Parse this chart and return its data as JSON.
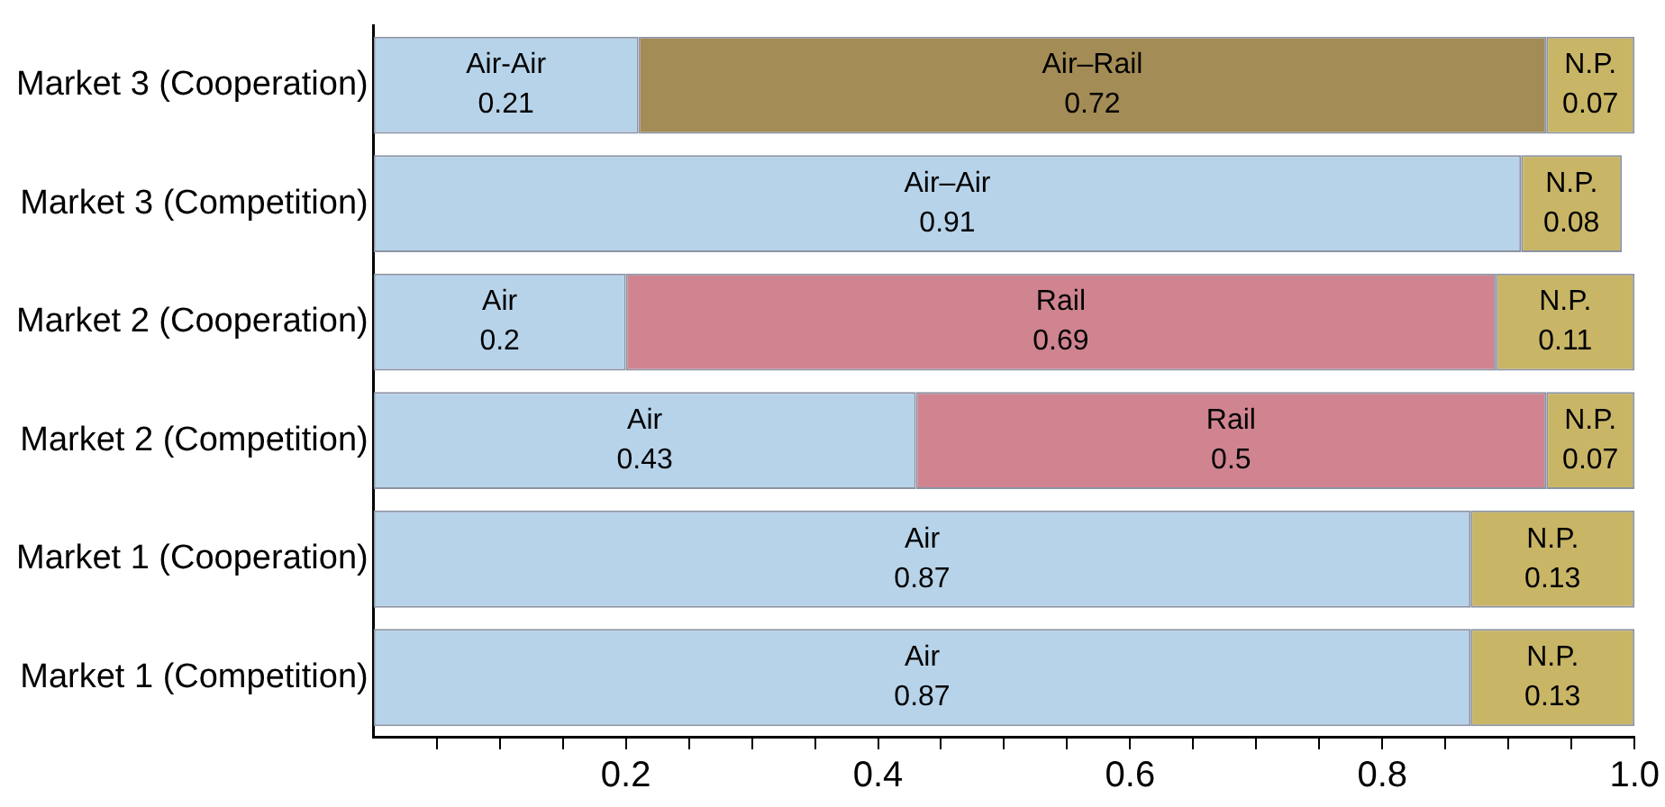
{
  "chart_data": {
    "type": "bar",
    "orientation": "horizontal",
    "stacked": true,
    "legend": false,
    "grid": false,
    "categories": [
      "Market 3 (Cooperation)",
      "Market 3 (Competition)",
      "Market 2 (Cooperation)",
      "Market 2 (Competition)",
      "Market 1 (Cooperation)",
      "Market 1 (Competition)"
    ],
    "xlim": [
      0,
      1
    ],
    "xticks": [
      {
        "value": 0.05,
        "label": null
      },
      {
        "value": 0.1,
        "label": null
      },
      {
        "value": 0.15,
        "label": null
      },
      0.2,
      {
        "value": 0.25,
        "label": null
      },
      {
        "value": 0.3,
        "label": null
      },
      {
        "value": 0.35,
        "label": null
      },
      0.4,
      {
        "value": 0.45,
        "label": null
      },
      {
        "value": 0.5,
        "label": null
      },
      {
        "value": 0.55,
        "label": null
      },
      0.6,
      {
        "value": 0.65,
        "label": null
      },
      {
        "value": 0.7,
        "label": null
      },
      {
        "value": 0.75,
        "label": null
      },
      0.8,
      {
        "value": 0.85,
        "label": null
      },
      {
        "value": 0.9,
        "label": null
      },
      {
        "value": 0.95,
        "label": null
      },
      {
        "value": 1,
        "label": "1.0"
      }
    ],
    "series": [
      {
        "color": "#b7d3e9",
        "values": [
          0.21,
          0.91,
          0.2,
          0.43,
          0.87,
          0.87
        ],
        "value_labels": [
          "Air-Air\n0.21",
          "Air–Air\n0.91",
          "Air\n0.2",
          "Air\n0.43",
          "Air\n0.87",
          "Air\n0.87"
        ]
      },
      {
        "color": "#a38c56",
        "values": [
          0.72,
          null,
          null,
          null,
          null,
          null
        ],
        "value_labels": [
          "Air–Rail\n0.72",
          null,
          null,
          null,
          null,
          null
        ]
      },
      {
        "color": "#cf8490",
        "values": [
          null,
          null,
          0.69,
          0.5,
          null,
          null
        ],
        "value_labels": [
          null,
          null,
          "Rail\n0.69",
          "Rail\n0.5",
          null,
          null
        ]
      },
      {
        "color": "#c8b566",
        "values": [
          0.07,
          0.08,
          0.11,
          0.07,
          0.13,
          0.13
        ],
        "value_labels": [
          "N.P.\n0.07",
          "N.P.\n0.08",
          "N.P.\n0.11",
          "N.P.\n0.07",
          "N.P.\n0.13",
          "N.P.\n0.13"
        ]
      }
    ]
  }
}
